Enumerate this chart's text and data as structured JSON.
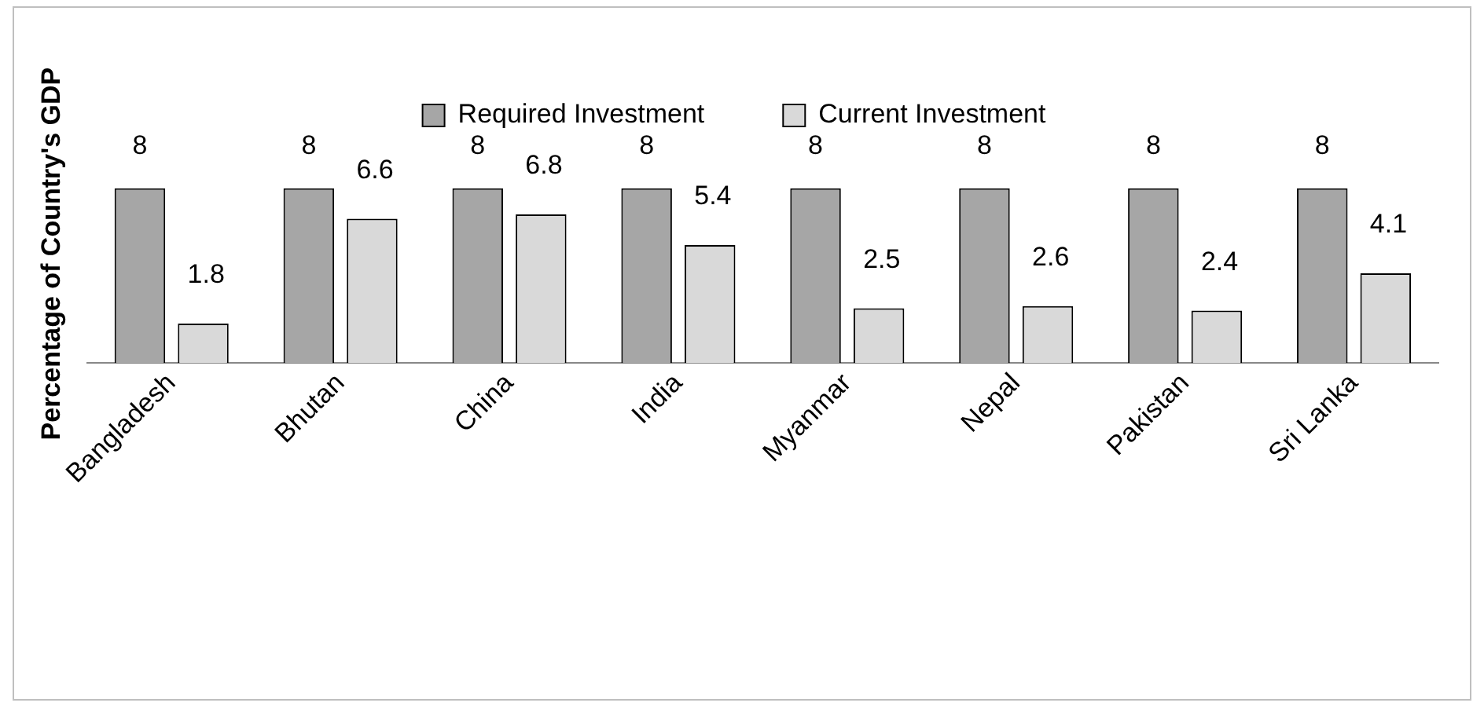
{
  "chart_data": {
    "type": "bar",
    "ylabel": "Percentage of Country's GDP",
    "categories": [
      "Bangladesh",
      "Bhutan",
      "China",
      "India",
      "Myanmar",
      "Nepal",
      "Pakistan",
      "Sri Lanka"
    ],
    "series": [
      {
        "name": "Required Investment",
        "color": "#a6a6a6",
        "values": [
          8,
          8,
          8,
          8,
          8,
          8,
          8,
          8
        ]
      },
      {
        "name": "Current Investment",
        "color": "#d9d9d9",
        "values": [
          1.8,
          6.6,
          6.8,
          5.4,
          2.5,
          2.6,
          2.4,
          4.1
        ]
      }
    ],
    "data_labels": true,
    "legend": "top",
    "grid": false
  }
}
